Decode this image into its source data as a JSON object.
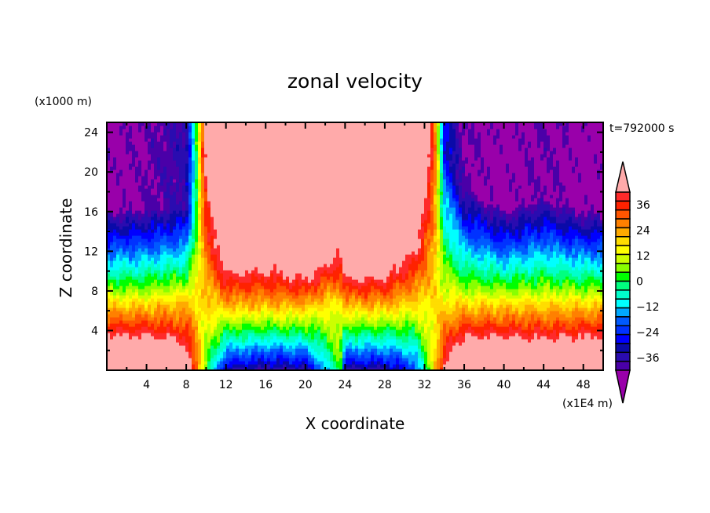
{
  "chart_data": {
    "type": "heatmap",
    "title": "zonal velocity",
    "xlabel": "X coordinate",
    "ylabel": "Z coordinate",
    "x_unit": "(x1E4 m)",
    "y_unit": "(x1000 m)",
    "annotation": "t=792000 s",
    "xlim": [
      0,
      50
    ],
    "ylim": [
      0,
      25
    ],
    "xticks": [
      4,
      8,
      12,
      16,
      20,
      24,
      28,
      32,
      36,
      40,
      44,
      48
    ],
    "yticks": [
      4,
      8,
      12,
      16,
      20,
      24
    ],
    "xtick_labels": [
      "4",
      "8",
      "12",
      "16",
      "20",
      "24",
      "28",
      "32",
      "36",
      "40",
      "44",
      "48"
    ],
    "ytick_labels": [
      "4",
      "8",
      "12",
      "16",
      "20",
      "24"
    ],
    "colorbar": {
      "levels": [
        -42,
        -39,
        -36,
        -33,
        -30,
        -27,
        -24,
        -21,
        -18,
        -15,
        -12,
        -9,
        -6,
        -3,
        0,
        3,
        6,
        9,
        12,
        15,
        18,
        21,
        24,
        27,
        30,
        33,
        36,
        39,
        42
      ],
      "labels": [
        "36",
        "24",
        "12",
        "0",
        "−12",
        "−24",
        "−36"
      ],
      "label_values": [
        36,
        24,
        12,
        0,
        -12,
        -24,
        -36
      ],
      "extend": "both",
      "colors": [
        "#9900aa",
        "#4a00a8",
        "#2a0cb0",
        "#0a0aa8",
        "#0000ff",
        "#0032ff",
        "#005aff",
        "#00a8ff",
        "#00ffff",
        "#00ffcc",
        "#00ff80",
        "#00ff00",
        "#88ff00",
        "#ccff00",
        "#ffff00",
        "#ffdd00",
        "#ffaa00",
        "#ff8000",
        "#ff5500",
        "#ff2200",
        "#ff2a2a",
        "#ffaaaa"
      ]
    },
    "field_description": "Zonal velocity (m/s) in X-Z plane; strong positive jet (pink/red >36) between x~10 and x~33 aloft, negative (purple <-36) on flanks aloft, reversed sign near surface.",
    "profiles": {
      "x": [
        0,
        4,
        8,
        9,
        10,
        12,
        16,
        20,
        23.5,
        24,
        28,
        31,
        33,
        34,
        36,
        40,
        44,
        48,
        50
      ],
      "surface_value": [
        40,
        40,
        30,
        10,
        -10,
        -36,
        -40,
        -38,
        -10,
        -38,
        -38,
        -30,
        0,
        20,
        38,
        38,
        36,
        38,
        40
      ],
      "aloft_value": [
        -42,
        -40,
        -36,
        -12,
        20,
        42,
        42,
        42,
        42,
        42,
        42,
        42,
        10,
        -30,
        -40,
        -42,
        -40,
        -42,
        -42
      ],
      "transition_height": [
        7,
        7,
        7.5,
        8,
        6,
        6,
        6,
        6,
        7,
        6,
        6,
        6.5,
        7,
        7,
        7,
        7,
        7,
        7,
        7
      ],
      "jet_core_bottom": [
        16,
        16,
        16,
        16,
        22,
        16,
        17,
        14.5,
        19.5,
        14.5,
        15,
        21,
        22,
        22,
        18,
        16,
        17,
        16,
        16
      ]
    }
  }
}
